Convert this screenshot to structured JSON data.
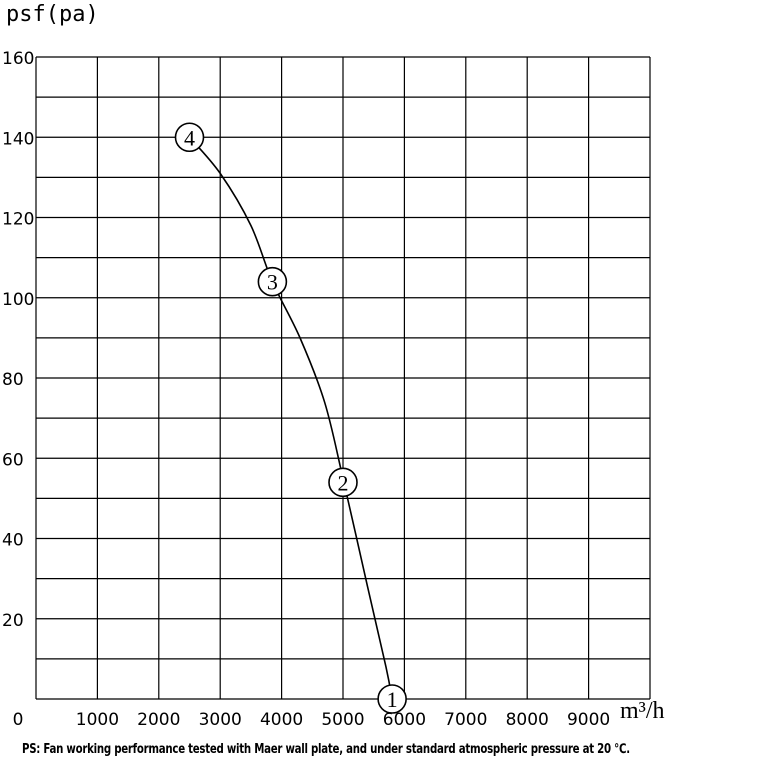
{
  "chart_data": {
    "type": "line",
    "ylabel": "psf(pa)",
    "xlabel": "m³/h",
    "xlim": [
      0,
      10000
    ],
    "ylim": [
      0,
      160
    ],
    "x_ticks": [
      0,
      1000,
      2000,
      3000,
      4000,
      5000,
      6000,
      7000,
      8000,
      9000
    ],
    "y_ticks": [
      20,
      40,
      60,
      80,
      100,
      120,
      140,
      160
    ],
    "x_grid_step": 1000,
    "y_grid_step": 10,
    "grid": true,
    "series": [
      {
        "x": [
          2500,
          3000,
          3500,
          3850,
          4300,
          4700,
          5000,
          5400,
          5700,
          5800
        ],
        "y": [
          140,
          131,
          118,
          104,
          90,
          74,
          55,
          28,
          8,
          0
        ]
      }
    ],
    "markers": [
      {
        "label": "1",
        "x": 5800,
        "y": 0
      },
      {
        "label": "2",
        "x": 5000,
        "y": 54
      },
      {
        "label": "3",
        "x": 3850,
        "y": 104
      },
      {
        "label": "4",
        "x": 2500,
        "y": 140
      }
    ],
    "note": "PS: Fan working performance tested with Maer wall plate, and under standard atmospheric pressure at 20 ℃."
  }
}
